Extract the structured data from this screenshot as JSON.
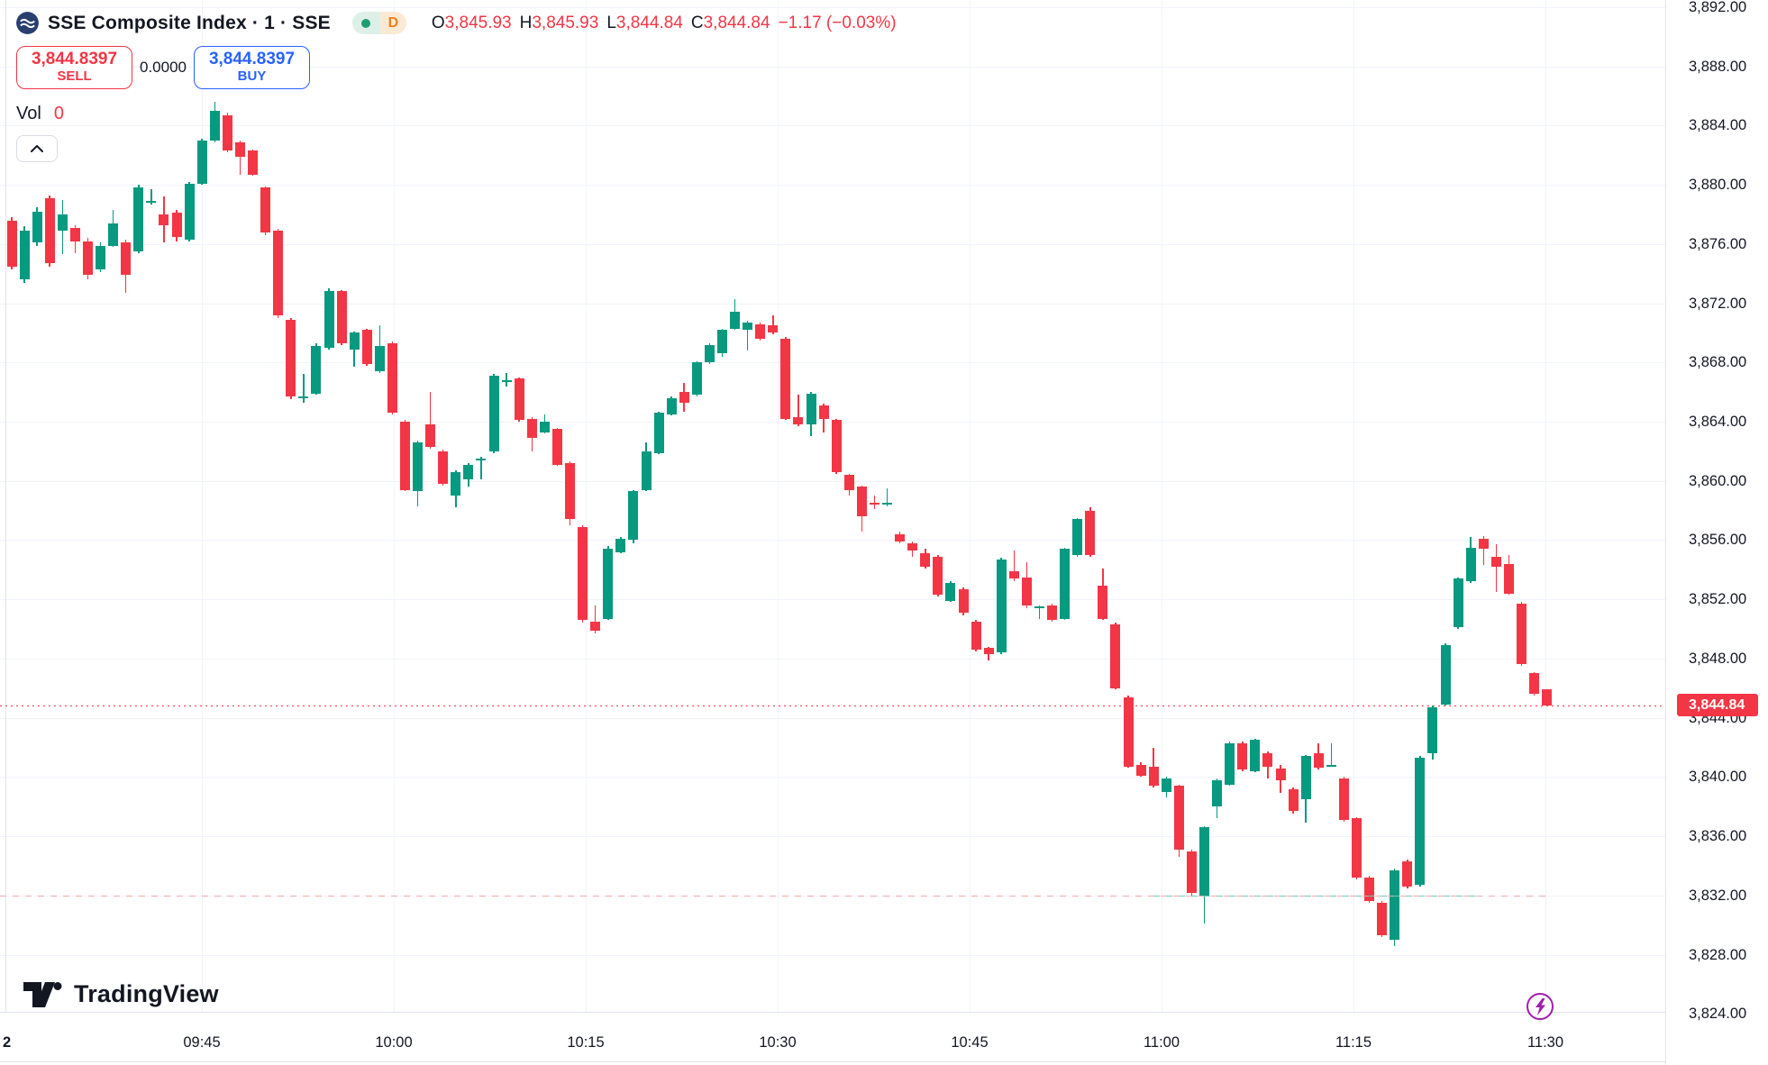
{
  "header": {
    "title": "SSE Composite Index · 1 · SSE",
    "status_dot": "market-open",
    "interval_badge": "D",
    "ohlc": {
      "o_key": "O",
      "o": "3,845.93",
      "h_key": "H",
      "h": "3,845.93",
      "l_key": "L",
      "l": "3,844.84",
      "c_key": "C",
      "c": "3,844.84"
    },
    "change": "−1.17 (−0.03%)"
  },
  "trade": {
    "sell_price": "3,844.8397",
    "sell_label": "SELL",
    "spread": "0.0000",
    "buy_price": "3,844.8397",
    "buy_label": "BUY"
  },
  "vol": {
    "label": "Vol",
    "value": "0"
  },
  "collapse_label": "collapse legend",
  "watermark": "TradingView",
  "price_axis": {
    "ticks": [
      {
        "label": "3,892.00",
        "value": 3892
      },
      {
        "label": "3,888.00",
        "value": 3888
      },
      {
        "label": "3,884.00",
        "value": 3884
      },
      {
        "label": "3,880.00",
        "value": 3880
      },
      {
        "label": "3,876.00",
        "value": 3876
      },
      {
        "label": "3,872.00",
        "value": 3872
      },
      {
        "label": "3,868.00",
        "value": 3868
      },
      {
        "label": "3,864.00",
        "value": 3864
      },
      {
        "label": "3,860.00",
        "value": 3860
      },
      {
        "label": "3,856.00",
        "value": 3856
      },
      {
        "label": "3,852.00",
        "value": 3852
      },
      {
        "label": "3,848.00",
        "value": 3848
      },
      {
        "label": "3,844.00",
        "value": 3844
      },
      {
        "label": "3,840.00",
        "value": 3840
      },
      {
        "label": "3,836.00",
        "value": 3836
      },
      {
        "label": "3,832.00",
        "value": 3832
      },
      {
        "label": "3,828.00",
        "value": 3828
      },
      {
        "label": "3,824.00",
        "value": 3824
      }
    ],
    "last_price_label": "3,844.84"
  },
  "time_axis": {
    "ticks": [
      "2",
      "09:45",
      "10:00",
      "10:15",
      "10:30",
      "10:45",
      "11:00",
      "11:15",
      "11:30"
    ]
  },
  "colors": {
    "up": "#089981",
    "down": "#f23645",
    "buy_accent": "#2962ff",
    "last_price_line": "#f23645",
    "ref_line_pink": "#f5a8a5",
    "ref_line_teal": "#6fc9bc",
    "lightning": "#a21caf",
    "badge_d": "#ef7f1a"
  },
  "chart_data": {
    "type": "candlestick",
    "title": "SSE Composite Index",
    "interval": "1 minute",
    "exchange": "SSE",
    "x_ticks": [
      "09:45",
      "10:00",
      "10:15",
      "10:30",
      "10:45",
      "11:00",
      "11:15",
      "11:30"
    ],
    "y_range": [
      3824,
      3892
    ],
    "grid": true,
    "last_price": 3844.84,
    "reference_price": 3832.0,
    "candles": [
      [
        3877.6,
        3877.8,
        3874.3,
        3874.5
      ],
      [
        3873.6,
        3877.2,
        3873.4,
        3876.9
      ],
      [
        3876.1,
        3878.5,
        3875.9,
        3878.2
      ],
      [
        3879.1,
        3879.3,
        3874.5,
        3874.7
      ],
      [
        3876.9,
        3879.0,
        3875.3,
        3878.0
      ],
      [
        3877.1,
        3877.3,
        3875.4,
        3876.2
      ],
      [
        3876.2,
        3876.4,
        3873.6,
        3873.9
      ],
      [
        3874.3,
        3876.1,
        3874.1,
        3875.9
      ],
      [
        3875.9,
        3878.3,
        3875.8,
        3877.4
      ],
      [
        3876.1,
        3876.3,
        3872.7,
        3873.9
      ],
      [
        3875.5,
        3880.0,
        3875.4,
        3879.8
      ],
      [
        3878.9,
        3879.7,
        3878.7,
        3878.9
      ],
      [
        3878.0,
        3879.2,
        3876.1,
        3877.3
      ],
      [
        3878.1,
        3878.3,
        3876.2,
        3876.5
      ],
      [
        3876.3,
        3880.2,
        3876.2,
        3880.1
      ],
      [
        3880.1,
        3883.1,
        3880.0,
        3883.0
      ],
      [
        3883.0,
        3885.6,
        3882.9,
        3885.0
      ],
      [
        3884.7,
        3884.9,
        3882.2,
        3882.3
      ],
      [
        3882.9,
        3883.0,
        3880.7,
        3881.9
      ],
      [
        3882.3,
        3882.4,
        3880.6,
        3880.7
      ],
      [
        3879.8,
        3879.9,
        3876.6,
        3876.8
      ],
      [
        3876.9,
        3877.0,
        3871.0,
        3871.2
      ],
      [
        3870.9,
        3871.0,
        3865.5,
        3865.7
      ],
      [
        3865.7,
        3867.2,
        3865.3,
        3865.7
      ],
      [
        3865.9,
        3869.3,
        3865.8,
        3869.1
      ],
      [
        3869.0,
        3873.0,
        3868.9,
        3872.8
      ],
      [
        3872.8,
        3872.9,
        3869.2,
        3869.3
      ],
      [
        3868.9,
        3870.1,
        3867.7,
        3870.0
      ],
      [
        3870.2,
        3870.3,
        3867.8,
        3867.9
      ],
      [
        3867.4,
        3870.5,
        3867.3,
        3869.1
      ],
      [
        3869.3,
        3869.4,
        3864.5,
        3864.6
      ],
      [
        3864.0,
        3864.1,
        3859.3,
        3859.4
      ],
      [
        3859.3,
        3862.7,
        3858.3,
        3862.6
      ],
      [
        3863.8,
        3866.0,
        3862.2,
        3862.3
      ],
      [
        3862.0,
        3862.1,
        3859.7,
        3859.8
      ],
      [
        3859.0,
        3860.7,
        3858.2,
        3860.6
      ],
      [
        3860.1,
        3861.2,
        3859.6,
        3861.1
      ],
      [
        3861.5,
        3861.6,
        3860.1,
        3861.5
      ],
      [
        3862.0,
        3867.2,
        3861.9,
        3867.1
      ],
      [
        3866.8,
        3867.3,
        3866.4,
        3866.8
      ],
      [
        3866.9,
        3867.0,
        3864.0,
        3864.1
      ],
      [
        3864.2,
        3864.3,
        3862.0,
        3862.9
      ],
      [
        3863.3,
        3864.5,
        3863.2,
        3864.0
      ],
      [
        3863.5,
        3863.6,
        3861.0,
        3861.1
      ],
      [
        3861.2,
        3861.3,
        3857.0,
        3857.4
      ],
      [
        3856.9,
        3857.0,
        3850.4,
        3850.6
      ],
      [
        3850.5,
        3851.6,
        3849.7,
        3849.9
      ],
      [
        3850.7,
        3855.6,
        3850.6,
        3855.4
      ],
      [
        3855.2,
        3856.2,
        3855.1,
        3856.1
      ],
      [
        3856.0,
        3859.4,
        3855.8,
        3859.3
      ],
      [
        3859.4,
        3862.6,
        3859.3,
        3862.0
      ],
      [
        3861.9,
        3864.7,
        3861.8,
        3864.6
      ],
      [
        3864.5,
        3865.7,
        3864.4,
        3865.6
      ],
      [
        3866.0,
        3866.6,
        3864.7,
        3865.3
      ],
      [
        3865.8,
        3868.1,
        3865.7,
        3868.0
      ],
      [
        3868.0,
        3869.3,
        3867.9,
        3869.2
      ],
      [
        3868.6,
        3870.3,
        3868.4,
        3870.2
      ],
      [
        3870.3,
        3872.3,
        3870.2,
        3871.4
      ],
      [
        3870.2,
        3870.8,
        3868.8,
        3870.7
      ],
      [
        3870.6,
        3870.7,
        3869.5,
        3869.6
      ],
      [
        3870.5,
        3871.2,
        3869.9,
        3870.0
      ],
      [
        3869.6,
        3869.7,
        3864.1,
        3864.2
      ],
      [
        3864.3,
        3865.8,
        3863.7,
        3863.8
      ],
      [
        3863.8,
        3866.0,
        3863.0,
        3865.9
      ],
      [
        3865.1,
        3865.2,
        3863.3,
        3864.2
      ],
      [
        3864.1,
        3864.2,
        3860.5,
        3860.6
      ],
      [
        3860.4,
        3860.5,
        3859.0,
        3859.4
      ],
      [
        3859.6,
        3859.7,
        3856.6,
        3857.6
      ],
      [
        3858.5,
        3859.0,
        3858.1,
        3858.4
      ],
      [
        3858.5,
        3859.5,
        3858.3,
        3858.5
      ],
      [
        3856.4,
        3856.6,
        3855.8,
        3855.9
      ],
      [
        3855.8,
        3855.9,
        3854.9,
        3855.3
      ],
      [
        3855.1,
        3855.4,
        3854.1,
        3854.2
      ],
      [
        3854.9,
        3855.0,
        3852.2,
        3852.3
      ],
      [
        3851.9,
        3853.2,
        3851.8,
        3853.1
      ],
      [
        3852.7,
        3852.8,
        3850.9,
        3851.1
      ],
      [
        3850.5,
        3850.6,
        3848.5,
        3848.6
      ],
      [
        3848.7,
        3848.8,
        3847.9,
        3848.3
      ],
      [
        3848.4,
        3854.8,
        3848.3,
        3854.7
      ],
      [
        3853.9,
        3855.3,
        3853.2,
        3853.4
      ],
      [
        3853.5,
        3854.5,
        3851.4,
        3851.6
      ],
      [
        3851.5,
        3851.6,
        3850.7,
        3851.5
      ],
      [
        3851.6,
        3851.7,
        3850.5,
        3850.6
      ],
      [
        3850.7,
        3855.5,
        3850.6,
        3855.4
      ],
      [
        3855.0,
        3857.5,
        3854.9,
        3857.4
      ],
      [
        3858.0,
        3858.2,
        3854.9,
        3855.0
      ],
      [
        3852.9,
        3854.1,
        3850.6,
        3850.7
      ],
      [
        3850.3,
        3850.4,
        3845.9,
        3846.0
      ],
      [
        3845.4,
        3845.5,
        3840.6,
        3840.7
      ],
      [
        3840.8,
        3841.0,
        3840.0,
        3840.1
      ],
      [
        3840.7,
        3842.0,
        3839.3,
        3839.4
      ],
      [
        3839.0,
        3840.0,
        3838.6,
        3839.9
      ],
      [
        3839.4,
        3839.5,
        3834.6,
        3835.1
      ],
      [
        3835.0,
        3835.1,
        3832.0,
        3832.2
      ],
      [
        3832.0,
        3836.7,
        3830.1,
        3836.6
      ],
      [
        3838.0,
        3839.9,
        3837.2,
        3839.8
      ],
      [
        3839.5,
        3842.4,
        3839.4,
        3842.3
      ],
      [
        3842.3,
        3842.4,
        3840.4,
        3840.5
      ],
      [
        3840.4,
        3842.6,
        3840.3,
        3842.5
      ],
      [
        3841.6,
        3841.7,
        3839.9,
        3840.7
      ],
      [
        3840.6,
        3840.8,
        3838.9,
        3839.8
      ],
      [
        3839.2,
        3839.3,
        3837.5,
        3837.7
      ],
      [
        3838.5,
        3841.5,
        3836.9,
        3841.4
      ],
      [
        3841.6,
        3842.3,
        3840.5,
        3840.6
      ],
      [
        3840.8,
        3842.3,
        3840.7,
        3840.8
      ],
      [
        3839.9,
        3840.0,
        3837.0,
        3837.1
      ],
      [
        3837.2,
        3837.3,
        3833.1,
        3833.2
      ],
      [
        3833.2,
        3833.3,
        3831.5,
        3831.6
      ],
      [
        3831.5,
        3831.6,
        3829.2,
        3829.3
      ],
      [
        3829.0,
        3833.8,
        3828.6,
        3833.7
      ],
      [
        3834.3,
        3834.4,
        3832.5,
        3832.6
      ],
      [
        3832.7,
        3841.4,
        3832.6,
        3841.3
      ],
      [
        3841.6,
        3844.8,
        3841.2,
        3844.7
      ],
      [
        3844.9,
        3849.0,
        3844.8,
        3848.9
      ],
      [
        3850.1,
        3853.5,
        3850.0,
        3853.4
      ],
      [
        3853.2,
        3856.2,
        3853.1,
        3855.5
      ],
      [
        3856.1,
        3856.3,
        3854.3,
        3855.4
      ],
      [
        3854.9,
        3855.7,
        3852.5,
        3854.2
      ],
      [
        3854.4,
        3855.0,
        3852.3,
        3852.4
      ],
      [
        3851.7,
        3851.8,
        3847.5,
        3847.6
      ],
      [
        3847.0,
        3847.1,
        3845.5,
        3845.6
      ],
      [
        3845.93,
        3845.93,
        3844.84,
        3844.84
      ]
    ]
  }
}
